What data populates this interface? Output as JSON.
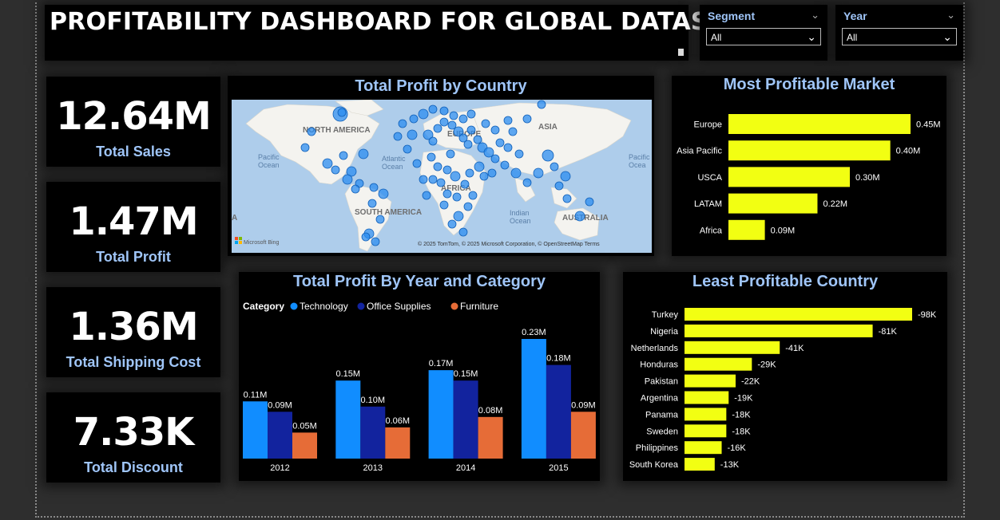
{
  "dashboard_title": "PROFITABILITY DASHBOARD FOR GLOBAL DATASTORE",
  "slicers": {
    "segment": {
      "label": "Segment",
      "value": "All"
    },
    "year": {
      "label": "Year",
      "value": "All"
    }
  },
  "kpis": [
    {
      "value": "12.64M",
      "label": "Total Sales"
    },
    {
      "value": "1.47M",
      "label": "Total Profit"
    },
    {
      "value": "1.36M",
      "label": "Total Shipping Cost"
    },
    {
      "value": "7.33K",
      "label": "Total Discount"
    }
  ],
  "map": {
    "title": "Total Profit by Country",
    "region_labels": [
      "NORTH AMERICA",
      "EUROPE",
      "ASIA",
      "AFRICA",
      "SOUTH AMERICA",
      "AUSTRALIA",
      "A"
    ],
    "ocean_labels": [
      "Pacific\nOcean",
      "Atlantic\nOcean",
      "Indian\nOcean",
      "Pacific\nOcea"
    ],
    "attribution": "© 2025 TomTom, © 2025 Microsoft Corporation, © OpenStreetMap  Terms",
    "logo": "Microsoft Bing"
  },
  "colors": {
    "accent_title": "#9fc5f8",
    "bar_yellow": "#f2ff12",
    "technology": "#118dff",
    "office_supplies": "#12239e",
    "furniture": "#e66c37",
    "map_bubble": "#2b8cf0"
  },
  "chart_data": [
    {
      "type": "bar",
      "orientation": "horizontal",
      "title": "Most Profitable Market",
      "categories": [
        "Europe",
        "Asia Pacific",
        "USCA",
        "LATAM",
        "Africa"
      ],
      "values": [
        0.45,
        0.4,
        0.3,
        0.22,
        0.09
      ],
      "value_labels": [
        "0.45M",
        "0.40M",
        "0.30M",
        "0.22M",
        "0.09M"
      ],
      "unit": "M"
    },
    {
      "type": "bar",
      "title": "Total Profit By Year and Category",
      "legend_title": "Category",
      "legend_position": "top-left",
      "categories": [
        "2012",
        "2013",
        "2014",
        "2015"
      ],
      "series": [
        {
          "name": "Technology",
          "values": [
            0.11,
            0.15,
            0.17,
            0.23
          ],
          "labels": [
            "0.11M",
            "0.15M",
            "0.17M",
            "0.23M"
          ]
        },
        {
          "name": "Office Supplies",
          "values": [
            0.09,
            0.1,
            0.15,
            0.18
          ],
          "labels": [
            "0.09M",
            "0.10M",
            "0.15M",
            "0.18M"
          ]
        },
        {
          "name": "Furniture",
          "values": [
            0.05,
            0.06,
            0.08,
            0.09
          ],
          "labels": [
            "0.05M",
            "0.06M",
            "0.08M",
            "0.09M"
          ]
        }
      ],
      "unit": "M"
    },
    {
      "type": "bar",
      "orientation": "horizontal",
      "title": "Least Profitable Country",
      "categories": [
        "Turkey",
        "Nigeria",
        "Netherlands",
        "Honduras",
        "Pakistan",
        "Argentina",
        "Panama",
        "Sweden",
        "Philippines",
        "South Korea"
      ],
      "values": [
        -98,
        -81,
        -41,
        -29,
        -22,
        -19,
        -18,
        -18,
        -16,
        -13
      ],
      "value_labels": [
        "-98K",
        "-81K",
        "-41K",
        "-29K",
        "-22K",
        "-19K",
        "-18K",
        "-18K",
        "-16K",
        "-13K"
      ],
      "unit": "K"
    }
  ]
}
